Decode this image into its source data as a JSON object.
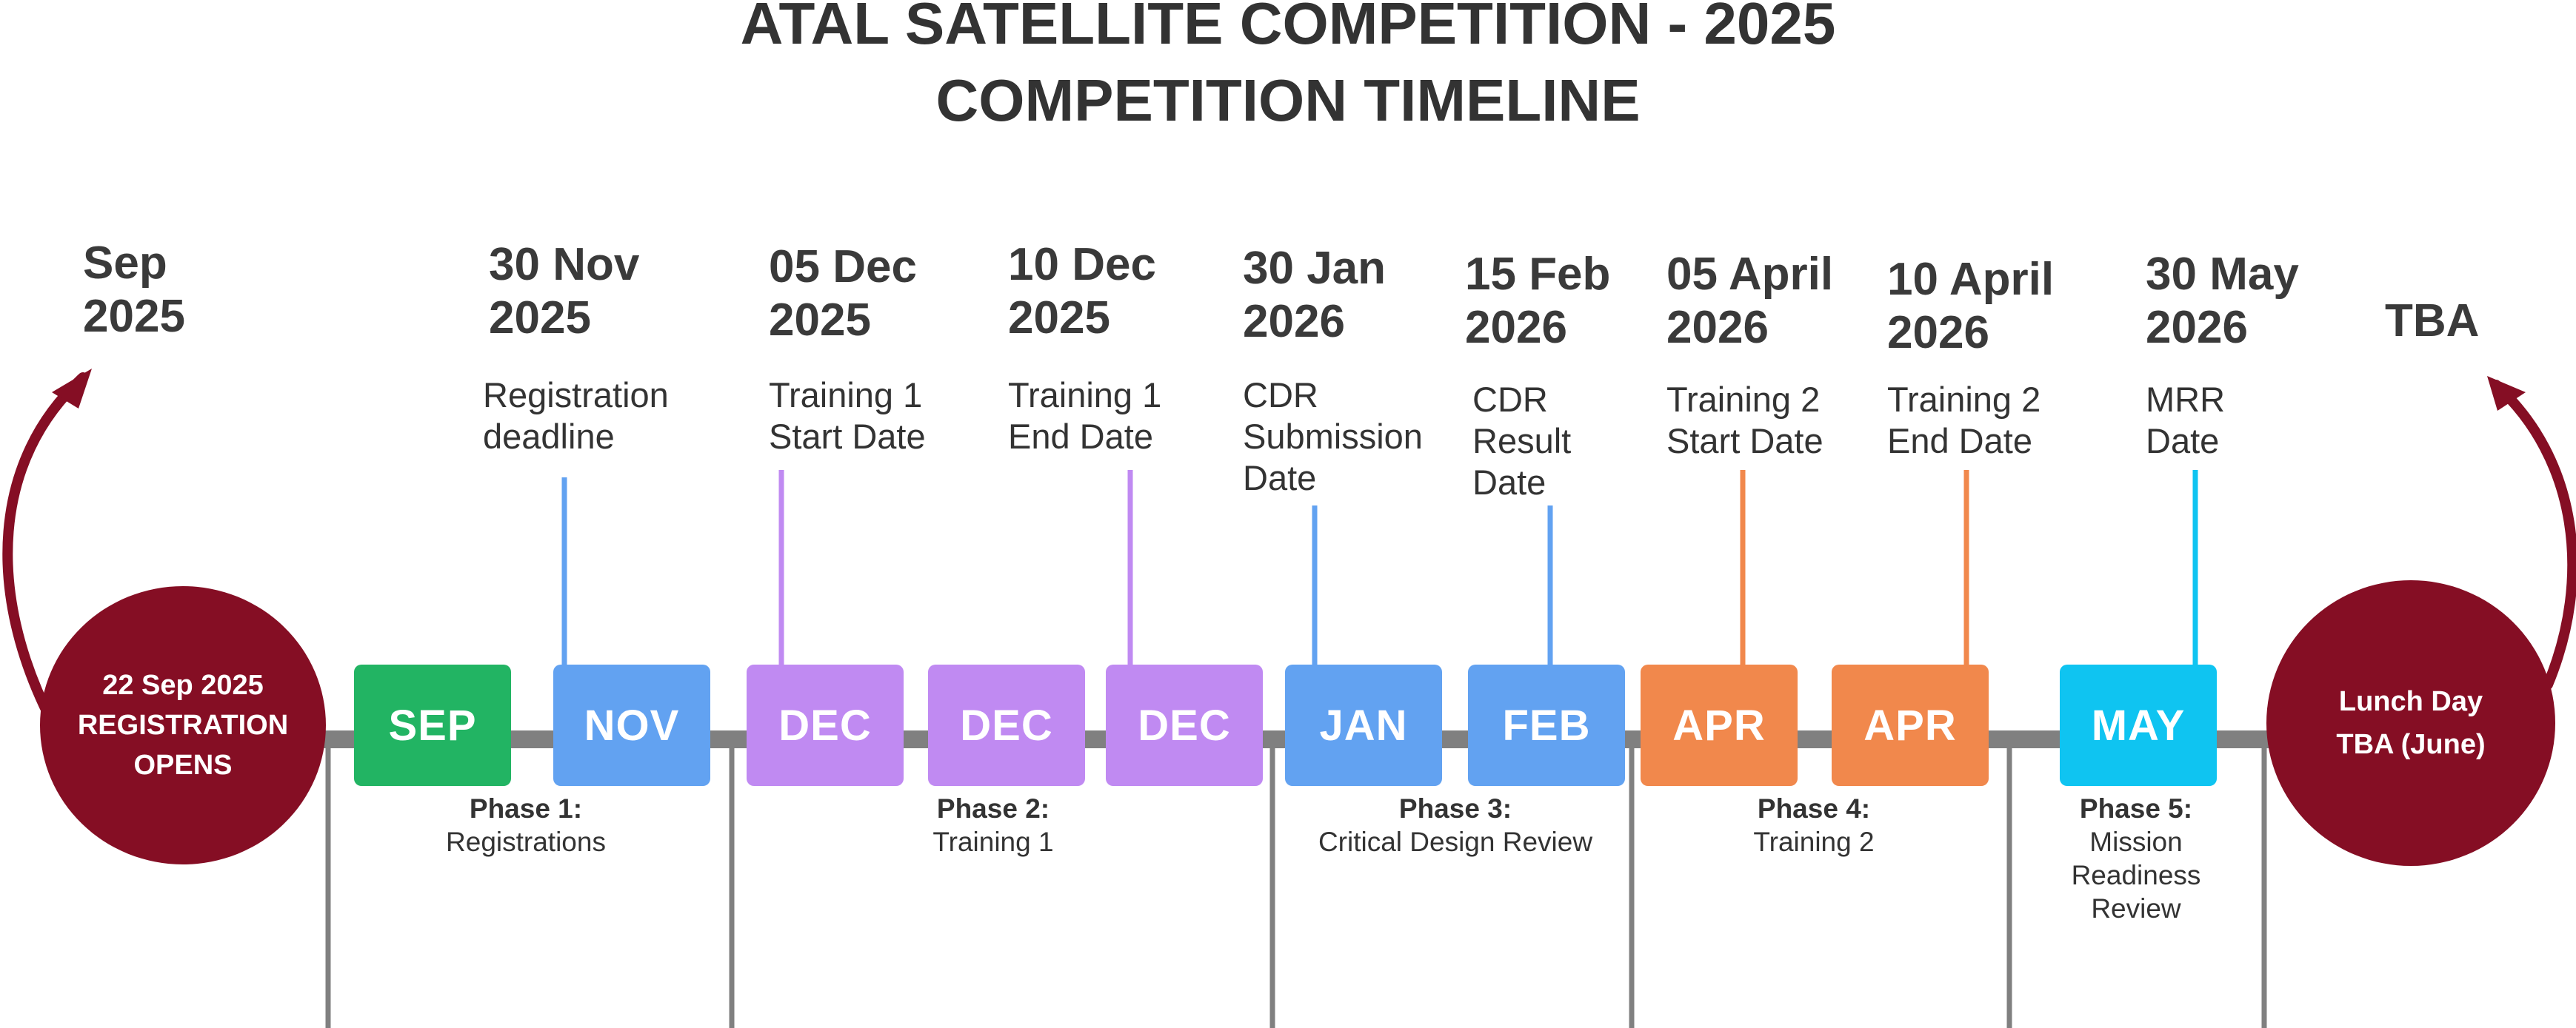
{
  "title": {
    "line1": "ATAL SATELLITE COMPETITION - 2025",
    "line2": "COMPETITION TIMELINE"
  },
  "start": {
    "date": "Sep\n2025",
    "circle_text": "22 Sep 2025\nREGISTRATION\nOPENS"
  },
  "end": {
    "date": "TBA",
    "circle_text": "Lunch Day\nTBA (June)"
  },
  "events": [
    {
      "date": "30 Nov\n2025",
      "label": "Registration\ndeadline",
      "color": "#62a2f1"
    },
    {
      "date": "05 Dec\n2025",
      "label": "Training 1\nStart Date",
      "color": "#c08af2"
    },
    {
      "date": "10 Dec\n2025",
      "label": "Training 1\nEnd Date",
      "color": "#c08af2"
    },
    {
      "date": "30 Jan\n2026",
      "label": "CDR\nSubmission\nDate",
      "color": "#62a2f1"
    },
    {
      "date": "15 Feb\n2026",
      "label": "CDR\nResult\nDate",
      "color": "#62a2f1"
    },
    {
      "date": "05 April\n2026",
      "label": "Training 2\nStart Date",
      "color": "#f1884c"
    },
    {
      "date": "10 April\n2026",
      "label": "Training 2\nEnd Date",
      "color": "#f1884c"
    },
    {
      "date": "30 May\n2026",
      "label": "MRR\nDate",
      "color": "#0fc4f1"
    }
  ],
  "months": [
    {
      "label": "SEP",
      "color": "#22b463"
    },
    {
      "label": "NOV",
      "color": "#62a2f1"
    },
    {
      "label": "DEC",
      "color": "#c08af2"
    },
    {
      "label": "DEC",
      "color": "#c08af2"
    },
    {
      "label": "DEC",
      "color": "#c08af2"
    },
    {
      "label": "JAN",
      "color": "#62a2f1"
    },
    {
      "label": "FEB",
      "color": "#62a2f1"
    },
    {
      "label": "APR",
      "color": "#f1884c"
    },
    {
      "label": "APR",
      "color": "#f1884c"
    },
    {
      "label": "MAY",
      "color": "#0fc4f1"
    }
  ],
  "phases": [
    {
      "title": "Phase 1:",
      "desc": "Registrations"
    },
    {
      "title": "Phase 2:",
      "desc": "Training 1"
    },
    {
      "title": "Phase 3:",
      "desc": "Critical Design Review"
    },
    {
      "title": "Phase 4:",
      "desc": "Training 2"
    },
    {
      "title": "Phase 5:",
      "desc": "Mission\nReadiness\nReview"
    }
  ],
  "colors": {
    "maroon": "#850e24",
    "axis": "#808080",
    "text": "#333333"
  }
}
